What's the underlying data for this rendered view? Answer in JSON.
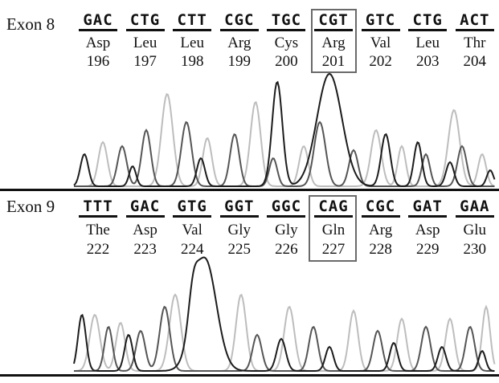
{
  "panels": [
    {
      "label": "Exon 8",
      "codons": [
        {
          "seq": "GAC",
          "aa": "Asp",
          "pos": "196"
        },
        {
          "seq": "CTG",
          "aa": "Leu",
          "pos": "197"
        },
        {
          "seq": "CTT",
          "aa": "Leu",
          "pos": "198"
        },
        {
          "seq": "CGC",
          "aa": "Arg",
          "pos": "199"
        },
        {
          "seq": "TGC",
          "aa": "Cys",
          "pos": "200"
        },
        {
          "seq": "CGT",
          "aa": "Arg",
          "pos": "201"
        },
        {
          "seq": "GTC",
          "aa": "Val",
          "pos": "202"
        },
        {
          "seq": "CTG",
          "aa": "Leu",
          "pos": "203"
        },
        {
          "seq": "ACT",
          "aa": "Thr",
          "pos": "204"
        }
      ],
      "highlight_index": 5
    },
    {
      "label": "Exon 9",
      "codons": [
        {
          "seq": "TTT",
          "aa": "The",
          "pos": "222"
        },
        {
          "seq": "GAC",
          "aa": "Asp",
          "pos": "223"
        },
        {
          "seq": "GTG",
          "aa": "Val",
          "pos": "224"
        },
        {
          "seq": "GGT",
          "aa": "Gly",
          "pos": "225"
        },
        {
          "seq": "GGC",
          "aa": "Gly",
          "pos": "226"
        },
        {
          "seq": "CAG",
          "aa": "Gln",
          "pos": "227"
        },
        {
          "seq": "CGC",
          "aa": "Arg",
          "pos": "228"
        },
        {
          "seq": "GAT",
          "aa": "Asp",
          "pos": "229"
        },
        {
          "seq": "GAA",
          "aa": "Glu",
          "pos": "230"
        }
      ],
      "highlight_index": 5
    }
  ],
  "colors": {
    "trace_dark": "#1c1c1c",
    "trace_mid": "#555555",
    "trace_light": "#bdbdbd",
    "box": "#6a6a6a"
  }
}
